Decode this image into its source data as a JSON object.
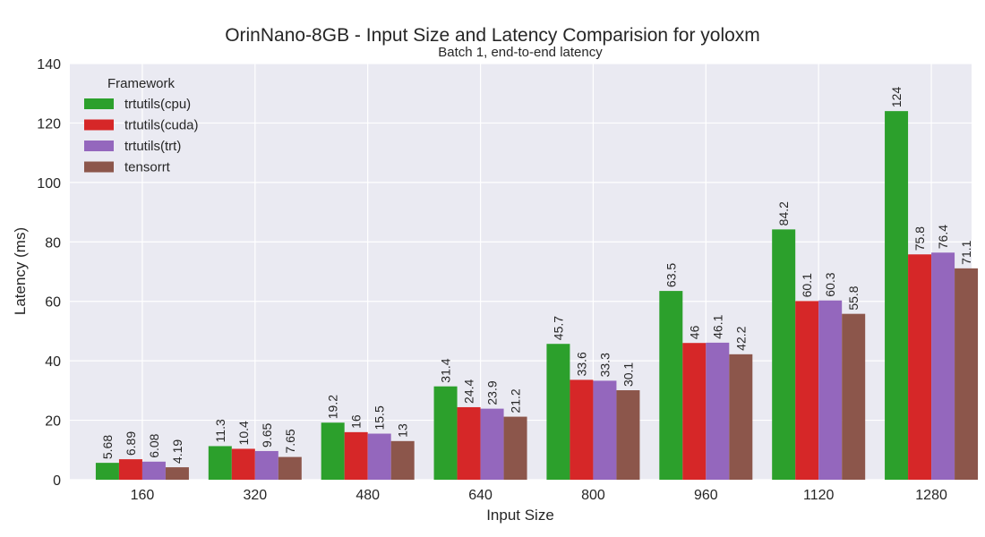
{
  "chart_data": {
    "type": "bar",
    "title": "OrinNano-8GB - Input Size and Latency Comparision for yoloxm",
    "subtitle": "Batch 1, end-to-end latency",
    "xlabel": "Input Size",
    "ylabel": "Latency (ms)",
    "ylim": [
      0,
      140
    ],
    "yticks": [
      0,
      20,
      40,
      60,
      80,
      100,
      120,
      140
    ],
    "grid": true,
    "legend_title": "Framework",
    "legend_position": "top-left",
    "categories": [
      "160",
      "320",
      "480",
      "640",
      "800",
      "960",
      "1120",
      "1280"
    ],
    "series": [
      {
        "name": "trtutils(cpu)",
        "color": "#2ca02c",
        "values": [
          5.68,
          11.3,
          19.2,
          31.4,
          45.7,
          63.5,
          84.2,
          124
        ],
        "labels": [
          "5.68",
          "11.3",
          "19.2",
          "31.4",
          "45.7",
          "63.5",
          "84.2",
          "124"
        ]
      },
      {
        "name": "trtutils(cuda)",
        "color": "#d62728",
        "values": [
          6.89,
          10.4,
          16,
          24.4,
          33.6,
          46,
          60.1,
          75.8
        ],
        "labels": [
          "6.89",
          "10.4",
          "16",
          "24.4",
          "33.6",
          "46",
          "60.1",
          "75.8"
        ]
      },
      {
        "name": "trtutils(trt)",
        "color": "#9467bd",
        "values": [
          6.08,
          9.65,
          15.5,
          23.9,
          33.3,
          46.1,
          60.3,
          76.4
        ],
        "labels": [
          "6.08",
          "9.65",
          "15.5",
          "23.9",
          "33.3",
          "46.1",
          "60.3",
          "76.4"
        ]
      },
      {
        "name": "tensorrt",
        "color": "#8c564b",
        "values": [
          4.19,
          7.65,
          13,
          21.2,
          30.1,
          42.2,
          55.8,
          71.1
        ],
        "labels": [
          "4.19",
          "7.65",
          "13",
          "21.2",
          "30.1",
          "42.2",
          "55.8",
          "71.1"
        ]
      }
    ],
    "background_color": "#eaeaf2",
    "grid_color": "#ffffff"
  }
}
